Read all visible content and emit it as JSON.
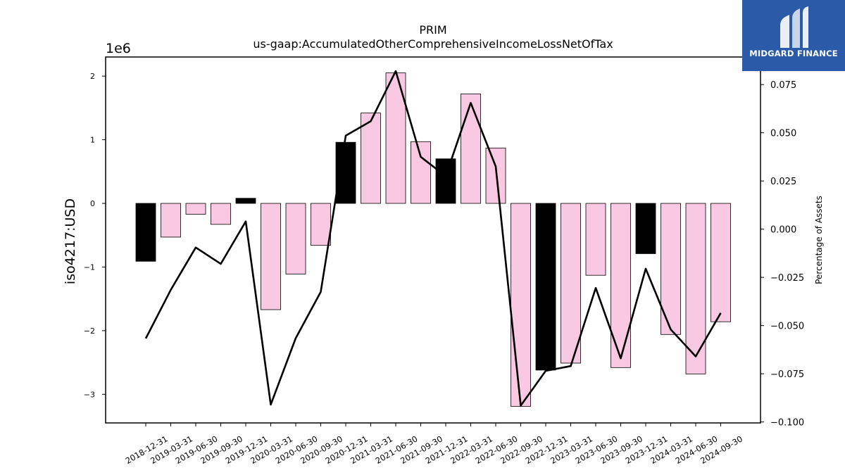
{
  "brand": {
    "name": "MIDGARD FINANCE",
    "color": "#2a5aa8"
  },
  "chart_data": {
    "type": "bar",
    "title": "PRIM",
    "subtitle": "us-gaap:AccumulatedOtherComprehensiveIncomeLossNetOfTax",
    "ylabel": "iso4217:USD",
    "y_offset_label": "1e6",
    "y2label": "Percentage of Assets",
    "ylim": [
      -3450000,
      2300000
    ],
    "y2lim": [
      -0.1005,
      0.0893
    ],
    "yticks": [
      -3000000,
      -2000000,
      -1000000,
      0,
      1000000,
      2000000
    ],
    "ytick_labels": [
      "−3",
      "−2",
      "−1",
      "0",
      "1",
      "2"
    ],
    "y2ticks": [
      -0.1,
      -0.075,
      -0.05,
      -0.025,
      0.0,
      0.025,
      0.05,
      0.075
    ],
    "y2tick_labels": [
      "−0.100",
      "−0.075",
      "−0.050",
      "−0.025",
      "0.000",
      "0.025",
      "0.050",
      "0.075"
    ],
    "grid": false,
    "colors": {
      "bar_default": "#f9c8e3",
      "bar_highlight": "#000000",
      "line": "#000000"
    },
    "categories": [
      "2018-12-31",
      "2019-03-31",
      "2019-06-30",
      "2019-09-30",
      "2019-12-31",
      "2020-03-31",
      "2020-06-30",
      "2020-09-30",
      "2020-12-31",
      "2021-03-31",
      "2021-06-30",
      "2021-09-30",
      "2021-12-31",
      "2022-03-31",
      "2022-06-30",
      "2022-09-30",
      "2022-12-31",
      "2023-03-31",
      "2023-06-30",
      "2023-09-30",
      "2023-12-31",
      "2024-03-31",
      "2024-06-30",
      "2024-09-30"
    ],
    "series": [
      {
        "type": "bar",
        "values": [
          -910000,
          -530000,
          -170000,
          -330000,
          80000,
          -1670000,
          -1110000,
          -660000,
          960000,
          1420000,
          2050000,
          970000,
          700000,
          1720000,
          870000,
          -3190000,
          -2620000,
          -2510000,
          -1130000,
          -2580000,
          -790000,
          -2060000,
          -2680000,
          -1860000
        ],
        "highlight": [
          true,
          false,
          false,
          false,
          true,
          false,
          false,
          false,
          true,
          false,
          false,
          false,
          true,
          false,
          false,
          false,
          true,
          false,
          false,
          false,
          true,
          false,
          false,
          false
        ]
      },
      {
        "type": "line",
        "axis": "y2",
        "values": [
          -0.0567,
          -0.0315,
          -0.0095,
          -0.018,
          0.004,
          -0.091,
          -0.0565,
          -0.0325,
          0.0485,
          0.056,
          0.082,
          0.0375,
          0.0275,
          0.0655,
          0.0325,
          -0.0915,
          -0.0735,
          -0.071,
          -0.0305,
          -0.067,
          -0.0205,
          -0.052,
          -0.066,
          -0.0435
        ]
      }
    ]
  }
}
